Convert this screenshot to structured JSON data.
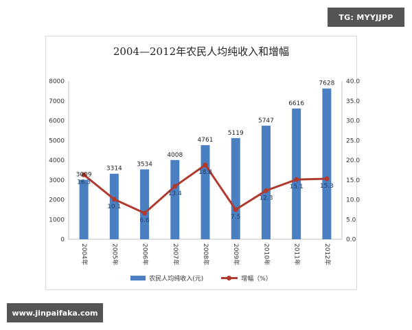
{
  "watermarks": {
    "top_right": "TG: MYYJJPP",
    "bottom_left": "www.jinpaifaka.com"
  },
  "chart_data": {
    "type": "bar",
    "title": "2004—2012年农民人均纯收入和增幅",
    "categories": [
      "2004年",
      "2005年",
      "2006年",
      "2007年",
      "2008年",
      "2009年",
      "2010年",
      "2011年",
      "2012年"
    ],
    "series": [
      {
        "name": "农民人均纯收入(元)",
        "type": "bar",
        "axis": "left",
        "color": "#4a7fc1",
        "values": [
          3009,
          3314,
          3534,
          4008,
          4761,
          5119,
          5747,
          6616,
          7628
        ]
      },
      {
        "name": "增幅（%）",
        "type": "line",
        "axis": "right",
        "color": "#b03a2e",
        "values": [
          16.3,
          10.1,
          6.6,
          13.4,
          18.8,
          7.5,
          12.3,
          15.1,
          15.3
        ]
      }
    ],
    "left_axis": {
      "ylim": [
        0,
        8000
      ],
      "ticks": [
        "0",
        "1000",
        "2000",
        "3000",
        "4000",
        "5000",
        "6000",
        "7000",
        "8000"
      ]
    },
    "right_axis": {
      "ylim": [
        0,
        40
      ],
      "ticks": [
        "0.0",
        "5.0",
        "10.0",
        "15.0",
        "20.0",
        "25.0",
        "30.0",
        "35.0",
        "40.0"
      ]
    },
    "grid": false,
    "legend_position": "bottom"
  }
}
